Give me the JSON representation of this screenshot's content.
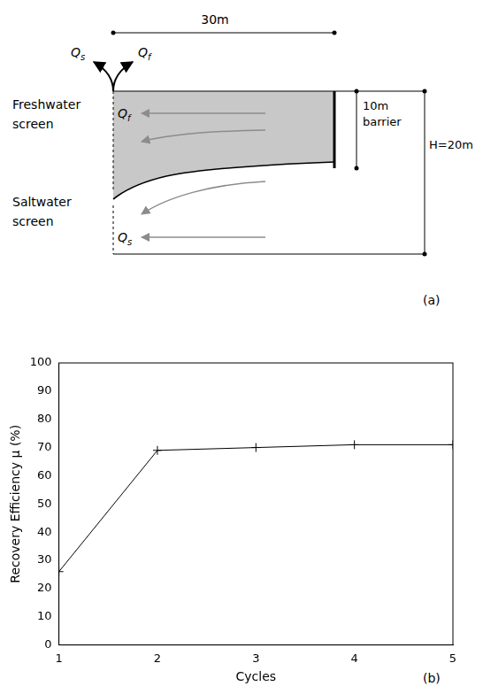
{
  "diagram": {
    "label": "(a)",
    "length": "30m",
    "barrier": "10m barrier",
    "height": "H=20m",
    "freshwater_screen": "Freshwater screen",
    "saltwater_screen": "Saltwater screen",
    "freshwater_flow": {
      "symbol": "Q",
      "subscript": "f"
    },
    "saltwater_flow": {
      "symbol": "Q",
      "subscript": "s"
    }
  },
  "chart_data": {
    "type": "line",
    "x_label": "Cycles",
    "y_label": "Recovery Efficiency μ (%)",
    "annotations": [
      "(b)"
    ],
    "x": [
      1,
      2,
      3,
      4,
      5
    ],
    "values": [
      26,
      69,
      70,
      71,
      71
    ],
    "color": "#000000",
    "marker": "plus",
    "line_style": "solid",
    "xlim": [
      1,
      5
    ],
    "xticks": [
      1,
      2,
      3,
      4,
      5
    ],
    "ylim": [
      0,
      100
    ],
    "yticks": [
      0,
      10,
      20,
      30,
      40,
      50,
      60,
      70,
      80,
      90,
      100
    ],
    "grid": false
  }
}
